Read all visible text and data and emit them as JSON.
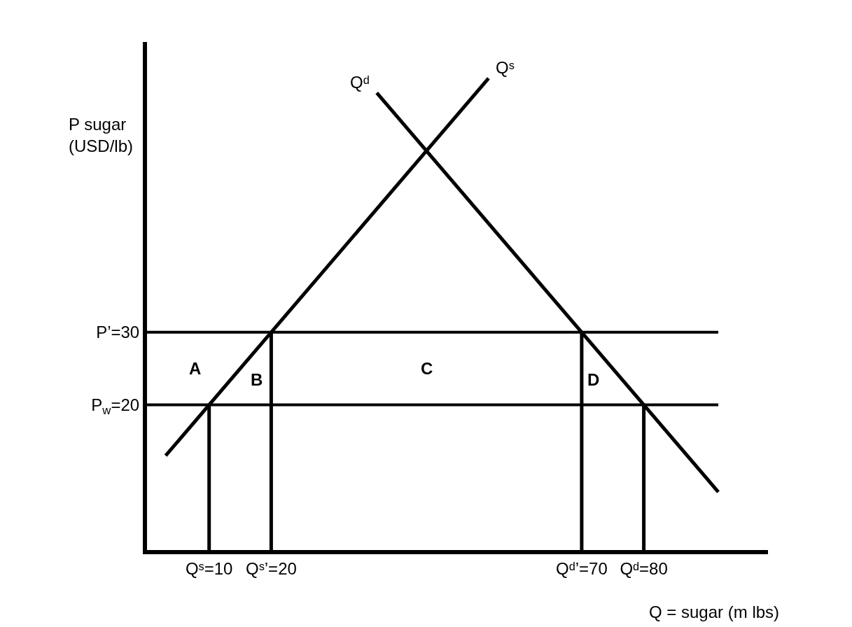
{
  "chart_data": {
    "type": "line",
    "xlabel": "Q = sugar (m lbs)",
    "ylabel": "P sugar (USD/lb)",
    "xlim": [
      0,
      100
    ],
    "ylim": [
      0,
      70
    ],
    "xticks": [
      {
        "value": 10,
        "label": "Qˢ=10"
      },
      {
        "value": 20,
        "label": "Qˢ’=20"
      },
      {
        "value": 70,
        "label": "Qᵈ’=70"
      },
      {
        "value": 80,
        "label": "Qᵈ=80"
      }
    ],
    "yticks": [
      {
        "value": 20,
        "label": "P$_{w}$=20"
      },
      {
        "value": 30,
        "label": "P’=30"
      }
    ],
    "series": [
      {
        "name": "Qˢ",
        "color": "#000000",
        "x": [
          3,
          55
        ],
        "values": [
          13,
          65
        ]
      },
      {
        "name": "Qᵈ",
        "color": "#000000",
        "x": [
          37,
          92
        ],
        "values": [
          63,
          8
        ]
      },
      {
        "color": "#000000",
        "x": [
          10,
          10
        ],
        "values": [
          0,
          20
        ]
      },
      {
        "color": "#000000",
        "x": [
          20,
          20
        ],
        "values": [
          0,
          30
        ]
      },
      {
        "color": "#000000",
        "x": [
          70,
          70
        ],
        "values": [
          0,
          30
        ]
      },
      {
        "color": "#000000",
        "x": [
          80,
          80
        ],
        "values": [
          0,
          20
        ]
      }
    ],
    "ref_lines": [
      {
        "axis": "y",
        "value": 30,
        "color": "#000000"
      },
      {
        "axis": "y",
        "value": 20,
        "color": "#000000"
      }
    ],
    "annotations": [
      "A",
      "B",
      "C",
      "D"
    ],
    "grid": false,
    "legend": false,
    "marker": "none",
    "line_style": "solid"
  }
}
